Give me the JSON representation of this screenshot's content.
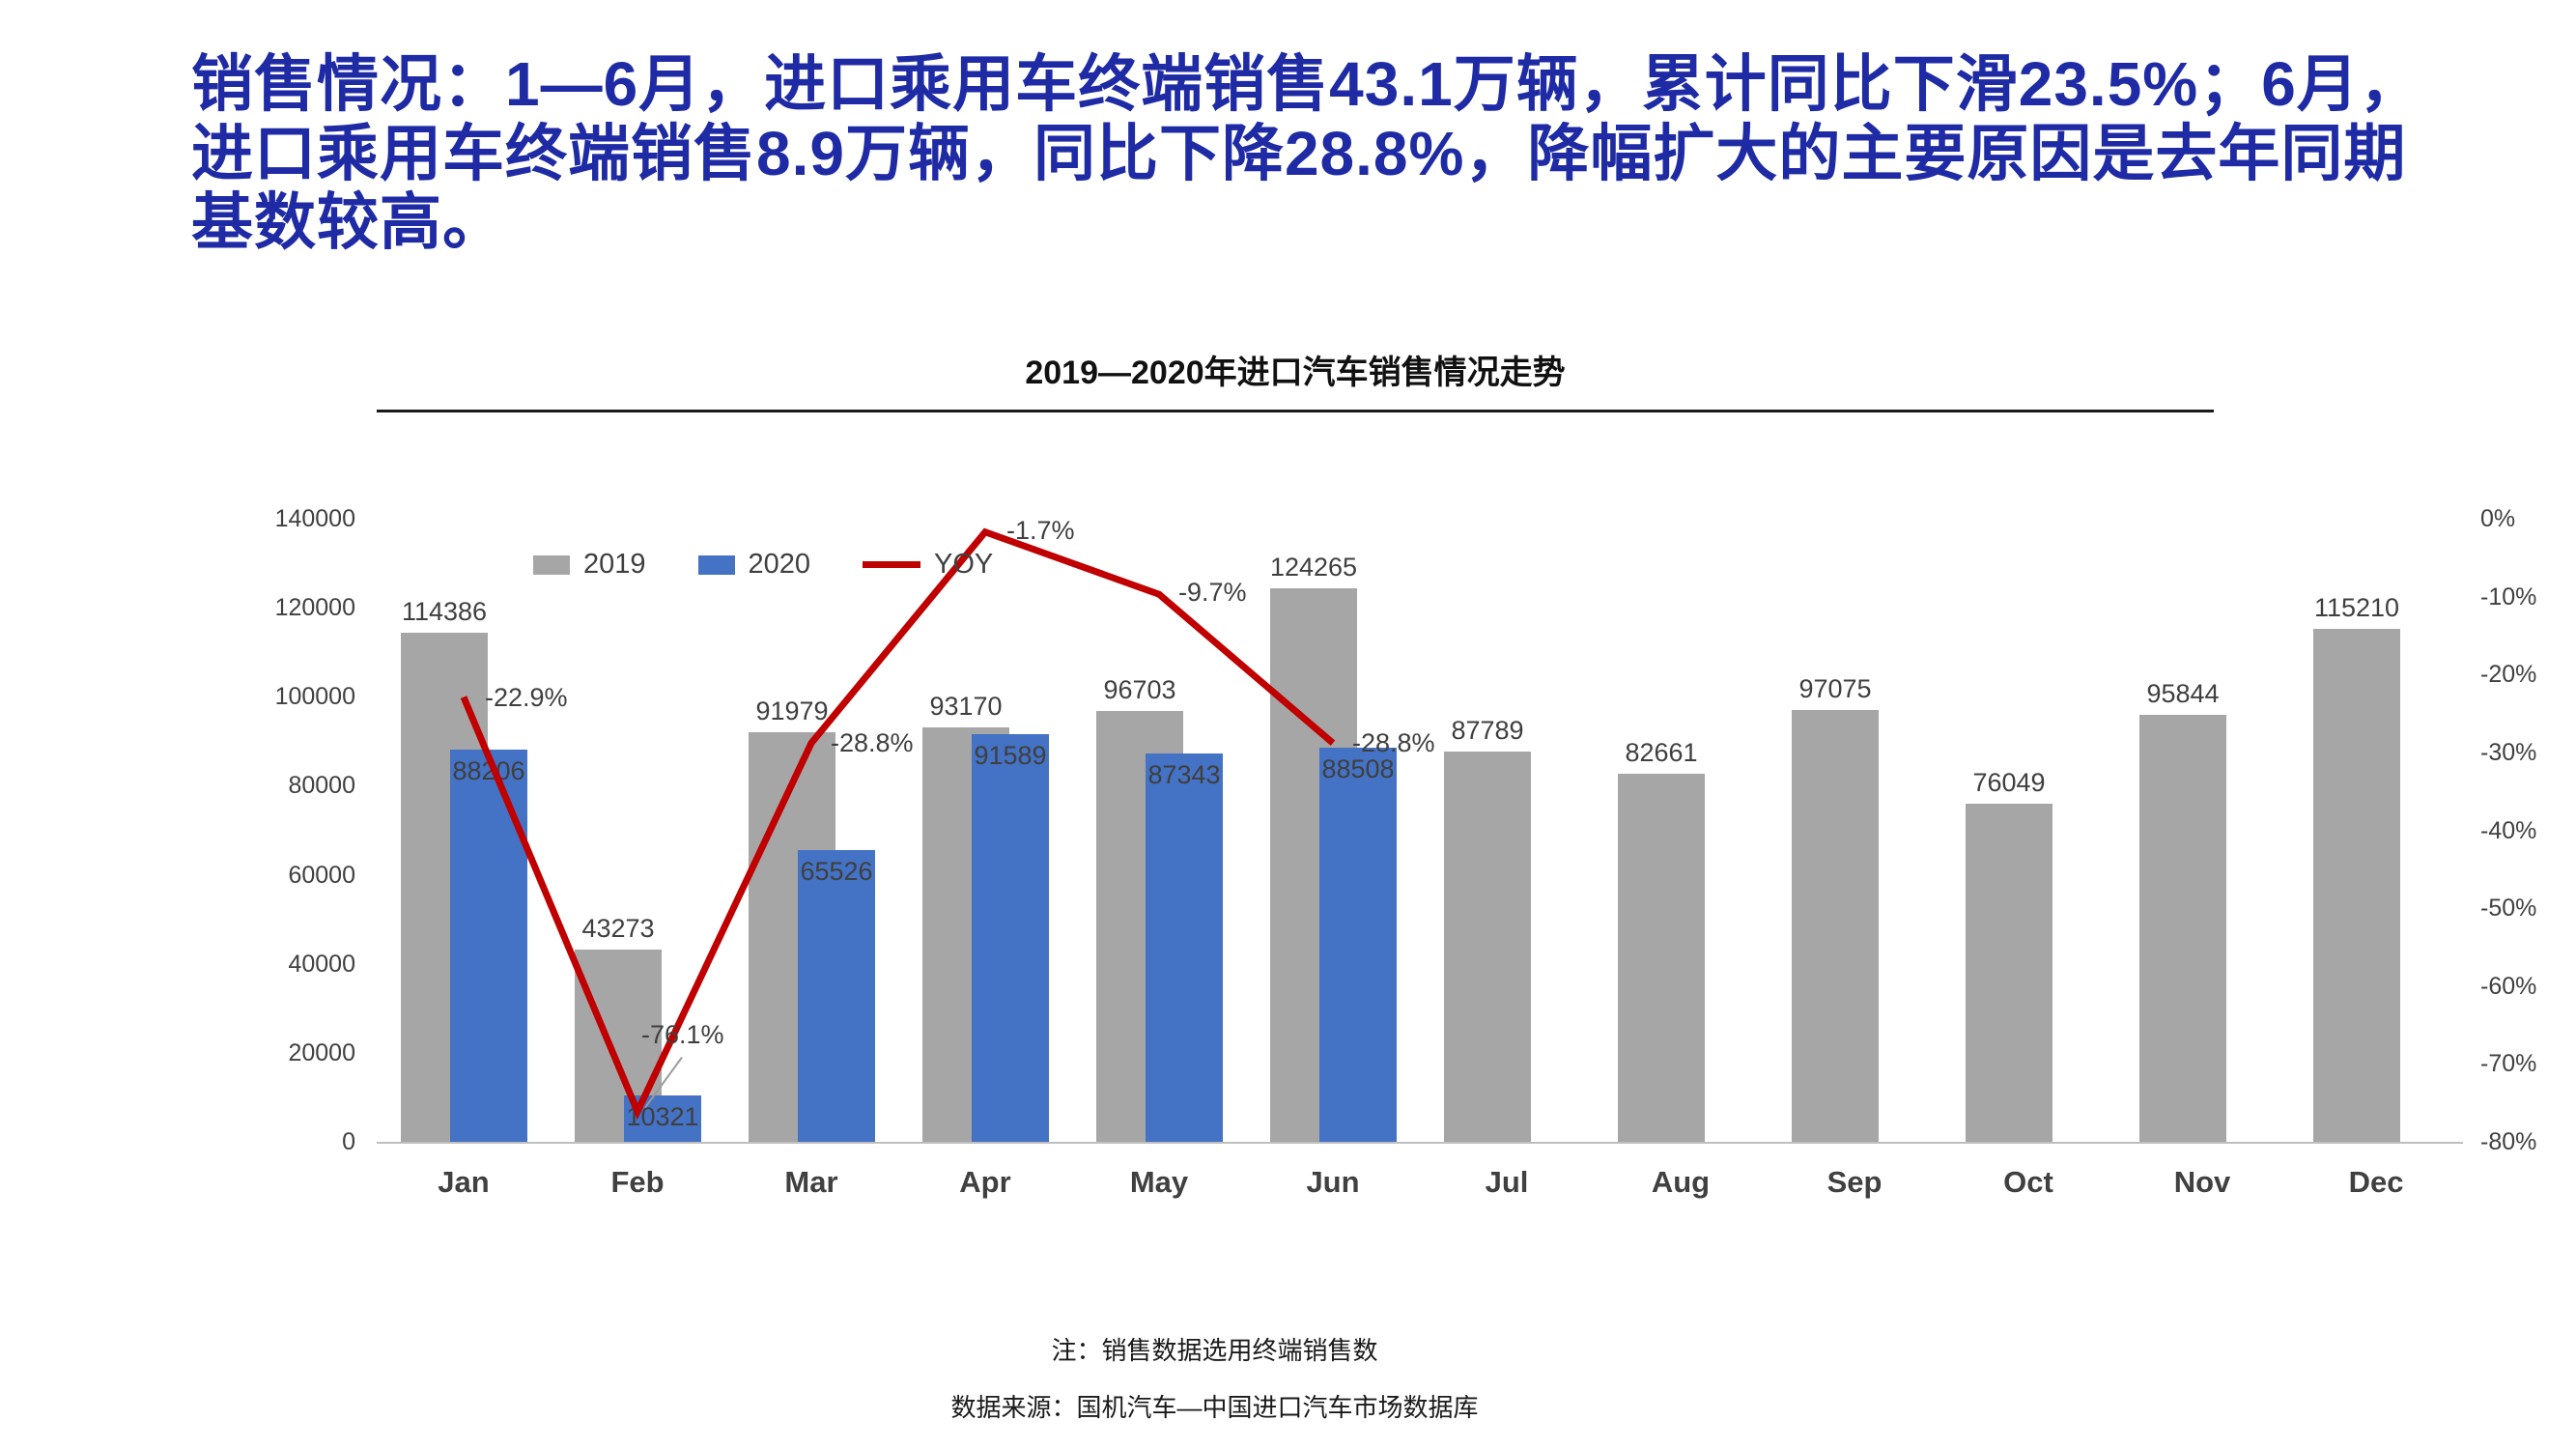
{
  "heading": {
    "text": "销售情况：1—6月，进口乘用车终端销售43.1万辆，累计同比下滑23.5%；6月，进口乘用车终端销售8.9万辆，同比下降28.8%，降幅扩大的主要原因是去年同期基数较高。"
  },
  "colors": {
    "heading_text": "#1F2BA5",
    "bar_2019": "#A6A6A6",
    "bar_2020": "#4472C4",
    "yoy_line": "#C00000"
  },
  "chart_data": {
    "type": "bar+line",
    "title": "2019—2020年进口汽车销售情况走势",
    "categories": [
      "Jan",
      "Feb",
      "Mar",
      "Apr",
      "May",
      "Jun",
      "Jul",
      "Aug",
      "Sep",
      "Oct",
      "Nov",
      "Dec"
    ],
    "series": [
      {
        "name": "2019",
        "kind": "bar",
        "color": "#A6A6A6",
        "values": [
          114386,
          43273,
          91979,
          93170,
          96703,
          124265,
          87789,
          82661,
          97075,
          76049,
          95844,
          115210
        ]
      },
      {
        "name": "2020",
        "kind": "bar",
        "color": "#4472C4",
        "values": [
          88206,
          10321,
          65526,
          91589,
          87343,
          88508
        ]
      },
      {
        "name": "YOY",
        "kind": "line",
        "color": "#C00000",
        "values": [
          -22.9,
          -76.1,
          -28.8,
          -1.7,
          -9.7,
          -28.8
        ],
        "point_labels": [
          "-22.9%",
          "-76.1%",
          "-28.8%",
          "-1.7%",
          "-9.7%",
          "-28.8%"
        ]
      }
    ],
    "legend": [
      {
        "label": "2019"
      },
      {
        "label": "2020"
      },
      {
        "label": "YOY"
      }
    ],
    "left_axis": {
      "min": 0,
      "max": 140000,
      "step": 20000,
      "tick_labels": [
        "140000",
        "120000",
        "100000",
        "80000",
        "60000",
        "40000",
        "20000",
        "0"
      ]
    },
    "right_axis": {
      "min": -80,
      "max": 0,
      "step": 10,
      "tick_labels": [
        "0%",
        "-10%",
        "-20%",
        "-30%",
        "-40%",
        "-50%",
        "-60%",
        "-70%",
        "-80%"
      ]
    },
    "grid": "off",
    "legend_position": "top-left"
  },
  "notes": {
    "line1": "注：销售数据选用终端销售数",
    "line2": "数据来源：国机汽车—中国进口汽车市场数据库"
  }
}
